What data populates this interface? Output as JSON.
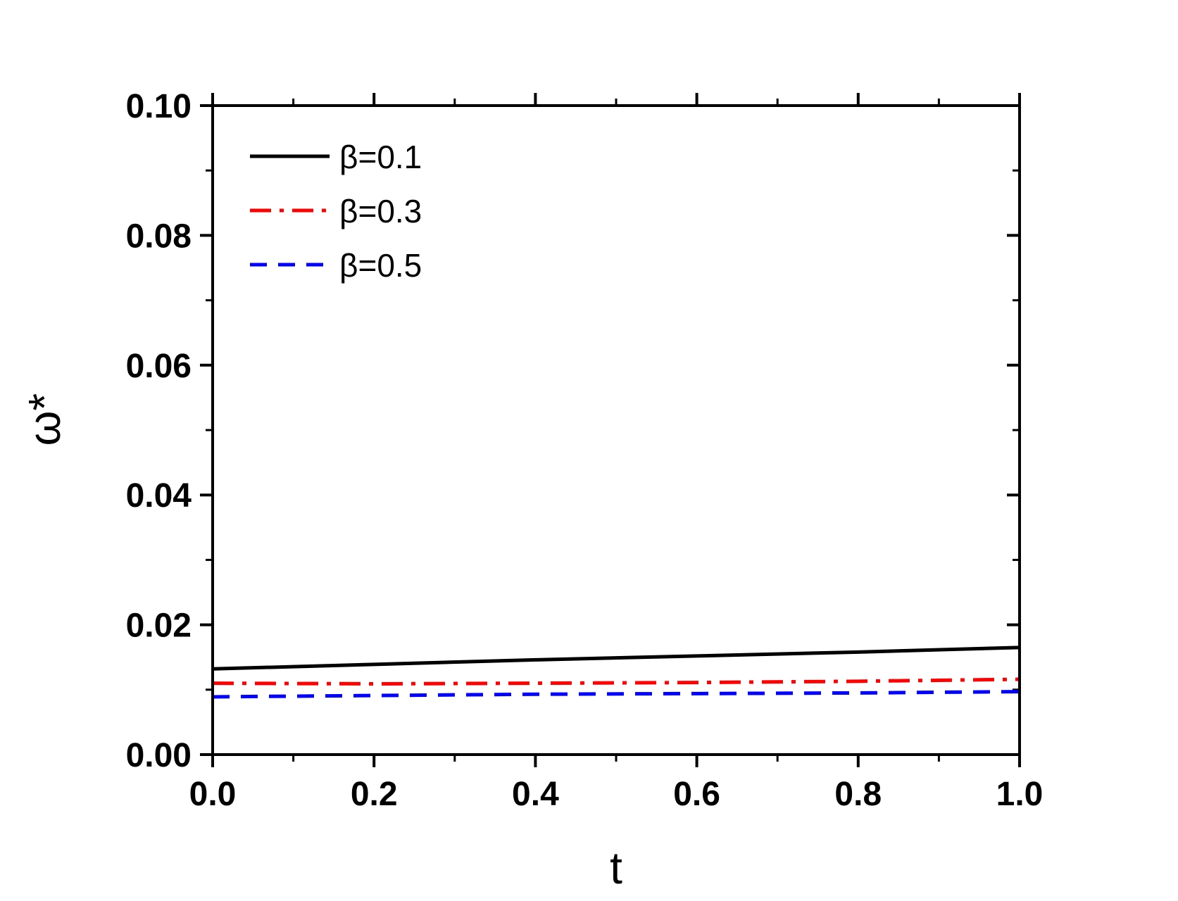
{
  "chart_data": {
    "type": "line",
    "xlabel": "t",
    "ylabel": "ω*",
    "xlim": [
      0.0,
      1.0
    ],
    "ylim": [
      0.0,
      0.1
    ],
    "xticks": [
      "0.0",
      "0.2",
      "0.4",
      "0.6",
      "0.8",
      "1.0"
    ],
    "yticks": [
      "0.00",
      "0.02",
      "0.04",
      "0.06",
      "0.08",
      "0.10"
    ],
    "grid": false,
    "legend_position": "top-left",
    "series": [
      {
        "name": "β=0.1",
        "color": "#000000",
        "style": "solid",
        "x": [
          0.0,
          0.2,
          0.4,
          0.6,
          0.8,
          1.0
        ],
        "y": [
          0.0132,
          0.0139,
          0.0146,
          0.0152,
          0.0158,
          0.0165
        ]
      },
      {
        "name": "β=0.3",
        "color": "#ff0000",
        "style": "dashdot",
        "x": [
          0.0,
          0.2,
          0.4,
          0.6,
          0.8,
          1.0
        ],
        "y": [
          0.011,
          0.0109,
          0.011,
          0.0111,
          0.0113,
          0.0116
        ]
      },
      {
        "name": "β=0.5",
        "color": "#0000ff",
        "style": "dash",
        "x": [
          0.0,
          0.2,
          0.4,
          0.6,
          0.8,
          1.0
        ],
        "y": [
          0.0089,
          0.0091,
          0.0093,
          0.0094,
          0.0095,
          0.0097
        ]
      }
    ]
  }
}
